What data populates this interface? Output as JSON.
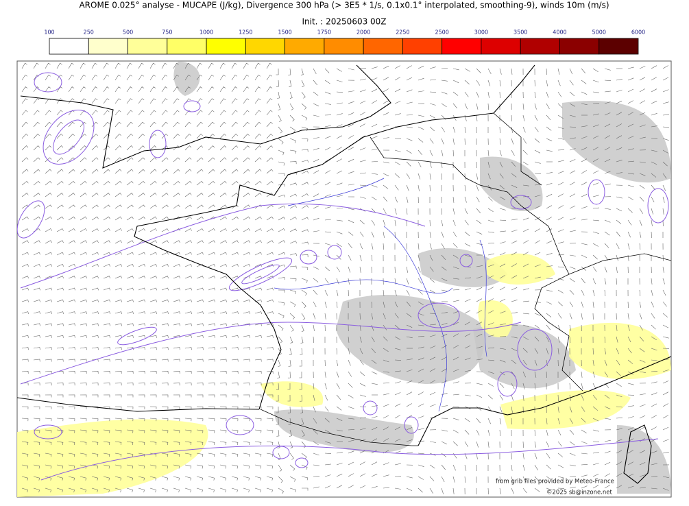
{
  "header": {
    "title": "AROME 0.025° analyse - MUCAPE (J/kg), Divergence 300 hPa (> 3E5 * 1/s, 0.1x0.1° interpolated, smoothing-9), winds 10m (m/s)",
    "init": "Init. : 20250603 00Z"
  },
  "colorbar": {
    "ticks": [
      "100",
      "250",
      "500",
      "750",
      "1000",
      "1250",
      "1500",
      "1750",
      "2000",
      "2250",
      "2500",
      "3000",
      "3500",
      "4000",
      "5000",
      "6000"
    ],
    "colors": [
      "#ffffff",
      "#ffffcc",
      "#ffff99",
      "#ffff66",
      "#ffff00",
      "#ffd700",
      "#ffaa00",
      "#ff8c00",
      "#ff6600",
      "#ff4000",
      "#ff0000",
      "#dd0000",
      "#b00000",
      "#8b0000",
      "#5c0000"
    ]
  },
  "credits": [
    "from grib files provided by Meteo-France",
    "©2025 sb@inzone.net"
  ]
}
